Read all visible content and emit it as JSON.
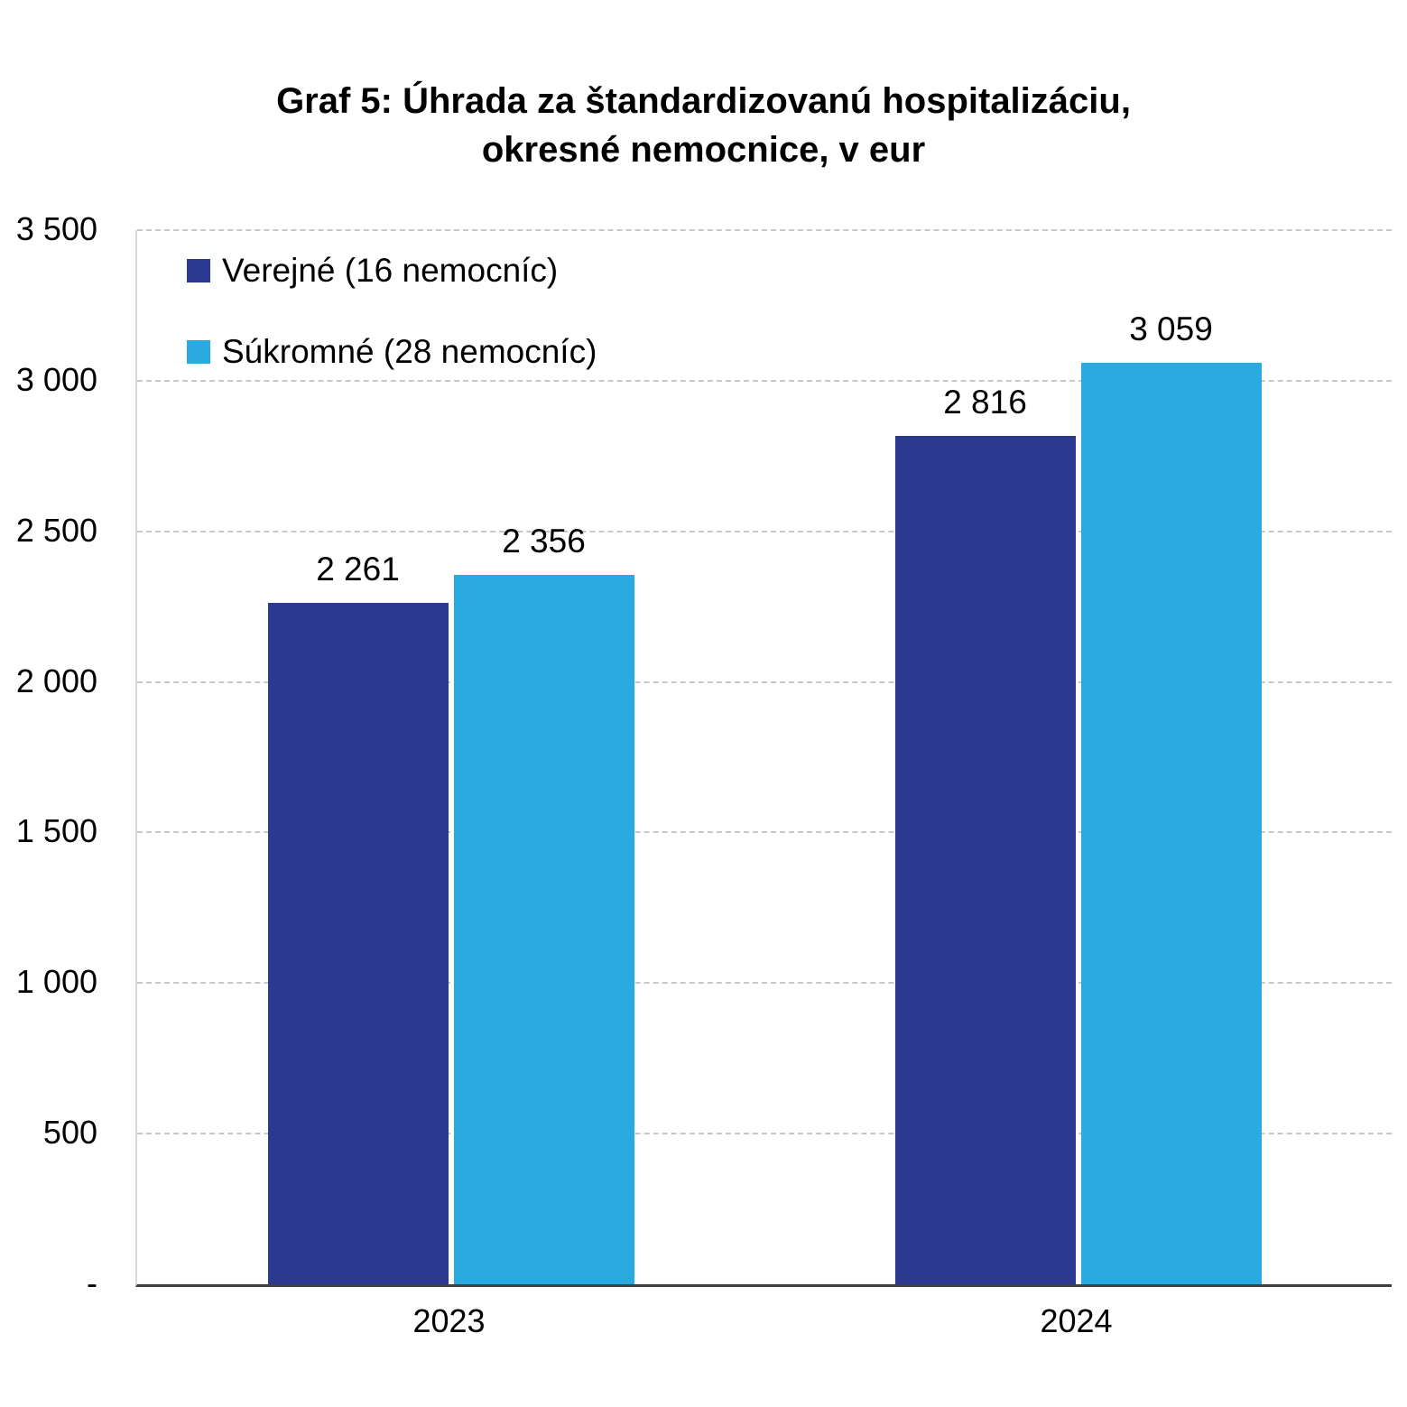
{
  "chart_data": {
    "type": "bar",
    "title": "Graf 5: Úhrada za štandardizovanú hospitalizáciu, okresné nemocnice, v eur",
    "categories": [
      "2023",
      "2024"
    ],
    "series": [
      {
        "name": "Verejné (16 nemocníc)",
        "color": "#2B3990",
        "values": [
          2261,
          2816
        ],
        "labels": [
          "2 261",
          "2 816"
        ]
      },
      {
        "name": "Súkromné (28 nemocníc)",
        "color": "#29ABE2",
        "values": [
          2356,
          3059
        ],
        "labels": [
          "2 356",
          "3 059"
        ]
      }
    ],
    "ylim": [
      0,
      3500
    ],
    "yticks": [
      {
        "value": 3500,
        "label": "3 500"
      },
      {
        "value": 3000,
        "label": "3 000"
      },
      {
        "value": 2500,
        "label": "2 500"
      },
      {
        "value": 2000,
        "label": "2 000"
      },
      {
        "value": 1500,
        "label": "1 500"
      },
      {
        "value": 1000,
        "label": "1 000"
      },
      {
        "value": 500,
        "label": "500"
      },
      {
        "value": 0,
        "label": "-"
      }
    ],
    "grid": "dashed-horizontal",
    "legend_position": "top-left"
  }
}
